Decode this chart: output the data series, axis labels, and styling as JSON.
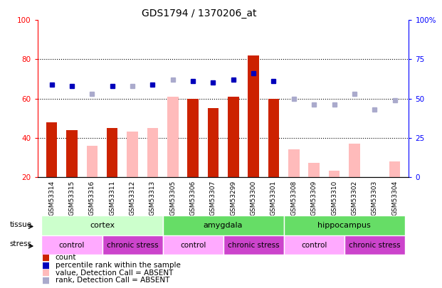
{
  "title": "GDS1794 / 1370206_at",
  "samples": [
    "GSM53314",
    "GSM53315",
    "GSM53316",
    "GSM53311",
    "GSM53312",
    "GSM53313",
    "GSM53305",
    "GSM53306",
    "GSM53307",
    "GSM53299",
    "GSM53300",
    "GSM53301",
    "GSM53308",
    "GSM53309",
    "GSM53310",
    "GSM53302",
    "GSM53303",
    "GSM53304"
  ],
  "red_bars": [
    48,
    44,
    null,
    45,
    null,
    null,
    null,
    60,
    55,
    61,
    82,
    60,
    null,
    null,
    null,
    null,
    null,
    null
  ],
  "pink_bars": [
    null,
    null,
    36,
    null,
    43,
    45,
    61,
    null,
    null,
    null,
    null,
    null,
    34,
    27,
    23,
    37,
    null,
    28
  ],
  "blue_squares_pct": [
    59,
    58,
    null,
    58,
    null,
    59,
    null,
    61,
    60,
    62,
    66,
    61,
    null,
    null,
    null,
    null,
    null,
    null
  ],
  "light_blue_squares_pct": [
    null,
    null,
    53,
    null,
    58,
    null,
    62,
    null,
    null,
    null,
    null,
    null,
    50,
    46,
    46,
    53,
    43,
    49
  ],
  "ylim_left": [
    20,
    100
  ],
  "ylim_right": [
    0,
    100
  ],
  "yticks_left": [
    20,
    40,
    60,
    80,
    100
  ],
  "yticks_right": [
    0,
    25,
    50,
    75,
    100
  ],
  "ytick_labels_right": [
    "0",
    "25",
    "50",
    "75",
    "100%"
  ],
  "tissue_groups": [
    {
      "label": "cortex",
      "start": 0,
      "end": 6,
      "color": "#ccffcc"
    },
    {
      "label": "amygdala",
      "start": 6,
      "end": 12,
      "color": "#66dd66"
    },
    {
      "label": "hippocampus",
      "start": 12,
      "end": 18,
      "color": "#66dd66"
    }
  ],
  "stress_groups": [
    {
      "label": "control",
      "start": 0,
      "end": 3,
      "color": "#ffaaff"
    },
    {
      "label": "chronic stress",
      "start": 3,
      "end": 6,
      "color": "#cc44cc"
    },
    {
      "label": "control",
      "start": 6,
      "end": 9,
      "color": "#ffaaff"
    },
    {
      "label": "chronic stress",
      "start": 9,
      "end": 12,
      "color": "#cc44cc"
    },
    {
      "label": "control",
      "start": 12,
      "end": 15,
      "color": "#ffaaff"
    },
    {
      "label": "chronic stress",
      "start": 15,
      "end": 18,
      "color": "#cc44cc"
    }
  ],
  "red_color": "#cc2200",
  "pink_color": "#ffbbbb",
  "blue_color": "#0000bb",
  "light_blue_color": "#aaaacc",
  "bar_width": 0.55,
  "xtick_bg": "#dddddd"
}
